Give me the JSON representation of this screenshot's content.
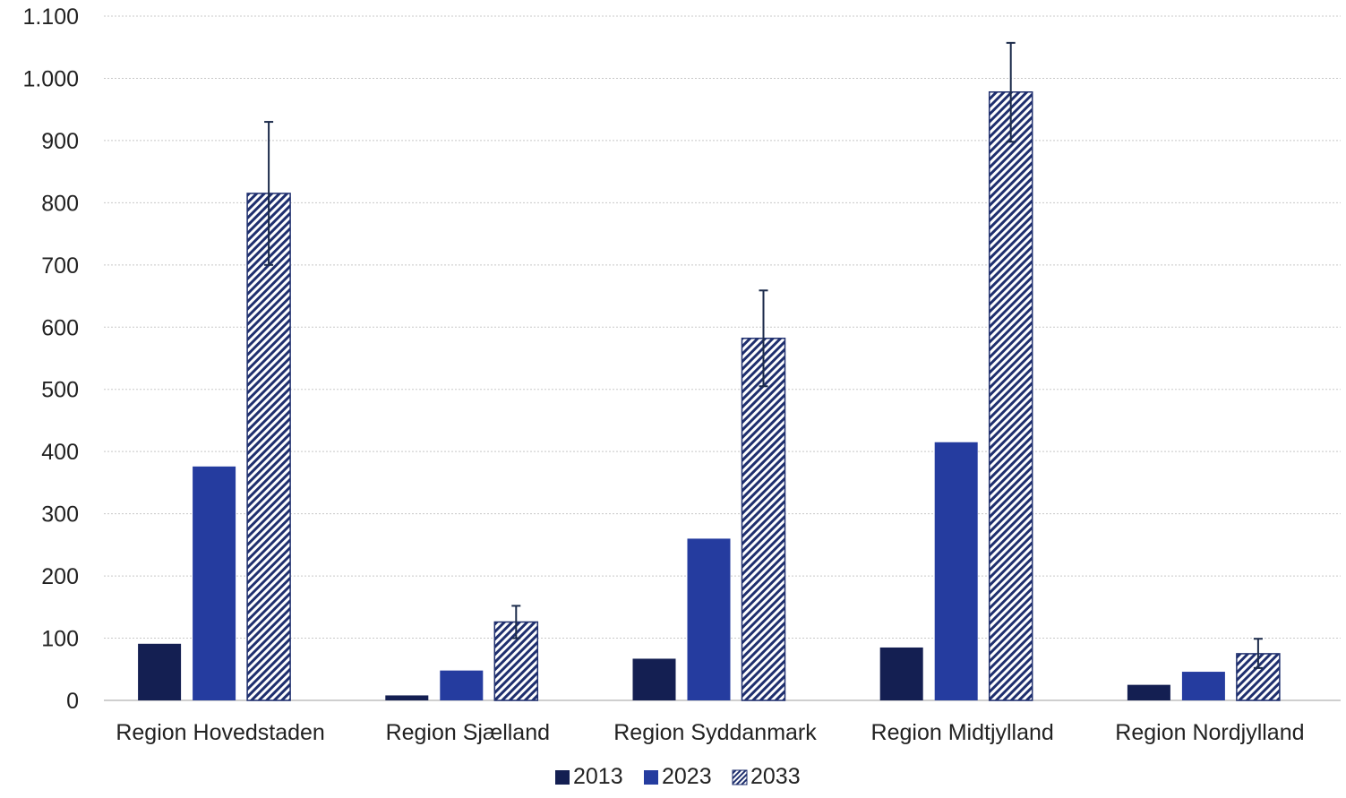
{
  "chart_data": {
    "type": "bar",
    "title": "",
    "xlabel": "",
    "ylabel": "",
    "ylim": [
      0,
      1100
    ],
    "y_ticks": [
      0,
      100,
      200,
      300,
      400,
      500,
      600,
      700,
      800,
      900,
      1000,
      1100
    ],
    "y_tick_labels": [
      "0",
      "100",
      "200",
      "300",
      "400",
      "500",
      "600",
      "700",
      "800",
      "900",
      "1.000",
      "1.100"
    ],
    "grid": true,
    "legend_position": "bottom",
    "categories": [
      "Region Hovedstaden",
      "Region Sjælland",
      "Region Syddanmark",
      "Region Midtjylland",
      "Region Nordjylland"
    ],
    "series": [
      {
        "name": "2013",
        "color": "#141f52",
        "pattern": "solid",
        "values": [
          91,
          8,
          67,
          85,
          25
        ]
      },
      {
        "name": "2023",
        "color": "#253c9f",
        "pattern": "solid",
        "values": [
          376,
          48,
          260,
          415,
          46
        ]
      },
      {
        "name": "2033",
        "color": "#1f2f6e",
        "pattern": "diagonal-hatch",
        "values": [
          815,
          126,
          582,
          978,
          75
        ],
        "error_low": [
          700,
          100,
          505,
          898,
          52
        ],
        "error_high": [
          930,
          152,
          659,
          1057,
          99
        ]
      }
    ],
    "colors": {
      "grid": "#c8c8c8",
      "axis": "#bfbfbf",
      "error_bar": "#1b2a4a"
    }
  }
}
